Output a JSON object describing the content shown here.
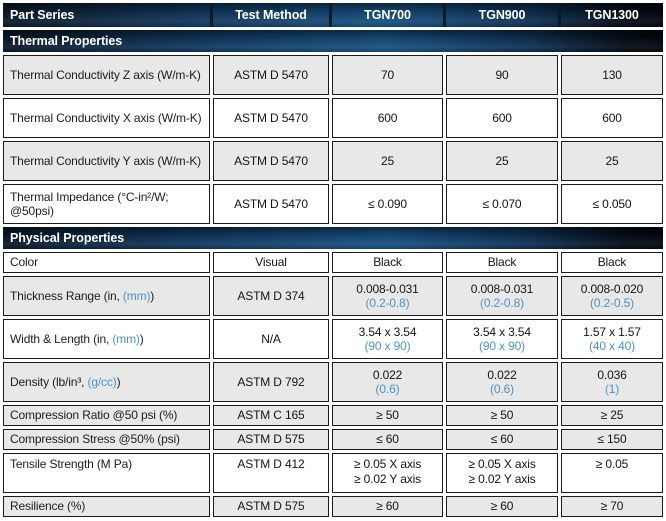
{
  "colors": {
    "accent_blue_text": "#4c93c3",
    "band_blue_mid": "#175181",
    "band_dark_edge": "#0a1a2d",
    "shaded_row_bg": "#e8e8e8",
    "cell_border": "#1b1b1b",
    "header_text": "#ffffff"
  },
  "table": {
    "columns": [
      "Part Series",
      "Test Method",
      "TGN700",
      "TGN900",
      "TGN1300"
    ],
    "sections": [
      {
        "title": "Thermal Properties",
        "rows": [
          {
            "label": "Thermal Conductivity Z axis (W/m-K)",
            "method": "ASTM D 5470",
            "values": [
              "70",
              "90",
              "130"
            ],
            "shaded": true,
            "size": "tall"
          },
          {
            "label": "Thermal Conductivity X axis (W/m-K)",
            "method": "ASTM D 5470",
            "values": [
              "600",
              "600",
              "600"
            ],
            "shaded": false,
            "size": "tall"
          },
          {
            "label": "Thermal Conductivity Y axis (W/m-K)",
            "method": "ASTM D 5470",
            "values": [
              "25",
              "25",
              "25"
            ],
            "shaded": true,
            "size": "tall"
          },
          {
            "label": "Thermal Impedance (°C-in²/W; @50psi)",
            "method": "ASTM D 5470",
            "values": [
              "≤ 0.090",
              "≤ 0.070",
              "≤ 0.050"
            ],
            "shaded": false,
            "size": "tall"
          }
        ]
      },
      {
        "title": "Physical Properties",
        "rows": [
          {
            "label": "Color",
            "method": "Visual",
            "values": [
              "Black",
              "Black",
              "Black"
            ],
            "shaded": false,
            "size": "short"
          },
          {
            "label": [
              [
                {
                  "text": "Thickness Range (in, "
                },
                {
                  "text": "(mm)",
                  "blue": true
                },
                {
                  "text": ")"
                }
              ]
            ],
            "method": "ASTM D 374",
            "values": [
              [
                "0.008-0.031",
                {
                  "text": "(0.2-0.8)",
                  "blue": true
                }
              ],
              [
                "0.008-0.031",
                {
                  "text": "(0.2-0.8)",
                  "blue": true
                }
              ],
              [
                "0.008-0.020",
                {
                  "text": "(0.2-0.5)",
                  "blue": true
                }
              ]
            ],
            "shaded": true,
            "size": "tall"
          },
          {
            "label": [
              [
                {
                  "text": "Width & Length (in, "
                },
                {
                  "text": "(mm)",
                  "blue": true
                },
                {
                  "text": ")"
                }
              ]
            ],
            "method": "N/A",
            "values": [
              [
                "3.54 x 3.54",
                {
                  "text": "(90 x 90)",
                  "blue": true
                }
              ],
              [
                "3.54 x 3.54",
                {
                  "text": "(90 x 90)",
                  "blue": true
                }
              ],
              [
                "1.57 x 1.57",
                {
                  "text": "(40 x 40)",
                  "blue": true
                }
              ]
            ],
            "shaded": false,
            "size": "tall"
          },
          {
            "label": [
              [
                {
                  "text": "Density (lb/in³, "
                },
                {
                  "text": "(g/cc)",
                  "blue": true
                },
                {
                  "text": ")"
                }
              ]
            ],
            "method": "ASTM D 792",
            "values": [
              [
                "0.022",
                {
                  "text": "(0.6)",
                  "blue": true
                }
              ],
              [
                "0.022",
                {
                  "text": "(0.6)",
                  "blue": true
                }
              ],
              [
                "0.036",
                {
                  "text": "(1)",
                  "blue": true
                }
              ]
            ],
            "shaded": true,
            "size": "tall"
          },
          {
            "label": "Compression Ratio @50 psi (%)",
            "method": "ASTM C 165",
            "values": [
              "≥ 50",
              "≥ 50",
              "≥ 25"
            ],
            "shaded": true,
            "size": "short"
          },
          {
            "label": "Compression Stress @50% (psi)",
            "method": "ASTM D 575",
            "values": [
              "≤ 60",
              "≤ 60",
              "≤ 150"
            ],
            "shaded": true,
            "size": "short"
          },
          {
            "label": "Tensile Strength (M Pa)",
            "method": "ASTM D 412",
            "values": [
              [
                "≥ 0.05 X axis",
                "≥ 0.02 Y axis"
              ],
              [
                "≥ 0.05 X axis",
                "≥ 0.02 Y axis"
              ],
              [
                "≥ 0.05"
              ]
            ],
            "shaded": false,
            "size": "tall",
            "valign": "top"
          },
          {
            "label": "Resilience (%)",
            "method": "ASTM D 575",
            "values": [
              "≥ 60",
              "≥ 60",
              "≥ 70"
            ],
            "shaded": true,
            "size": "short"
          }
        ]
      }
    ]
  }
}
